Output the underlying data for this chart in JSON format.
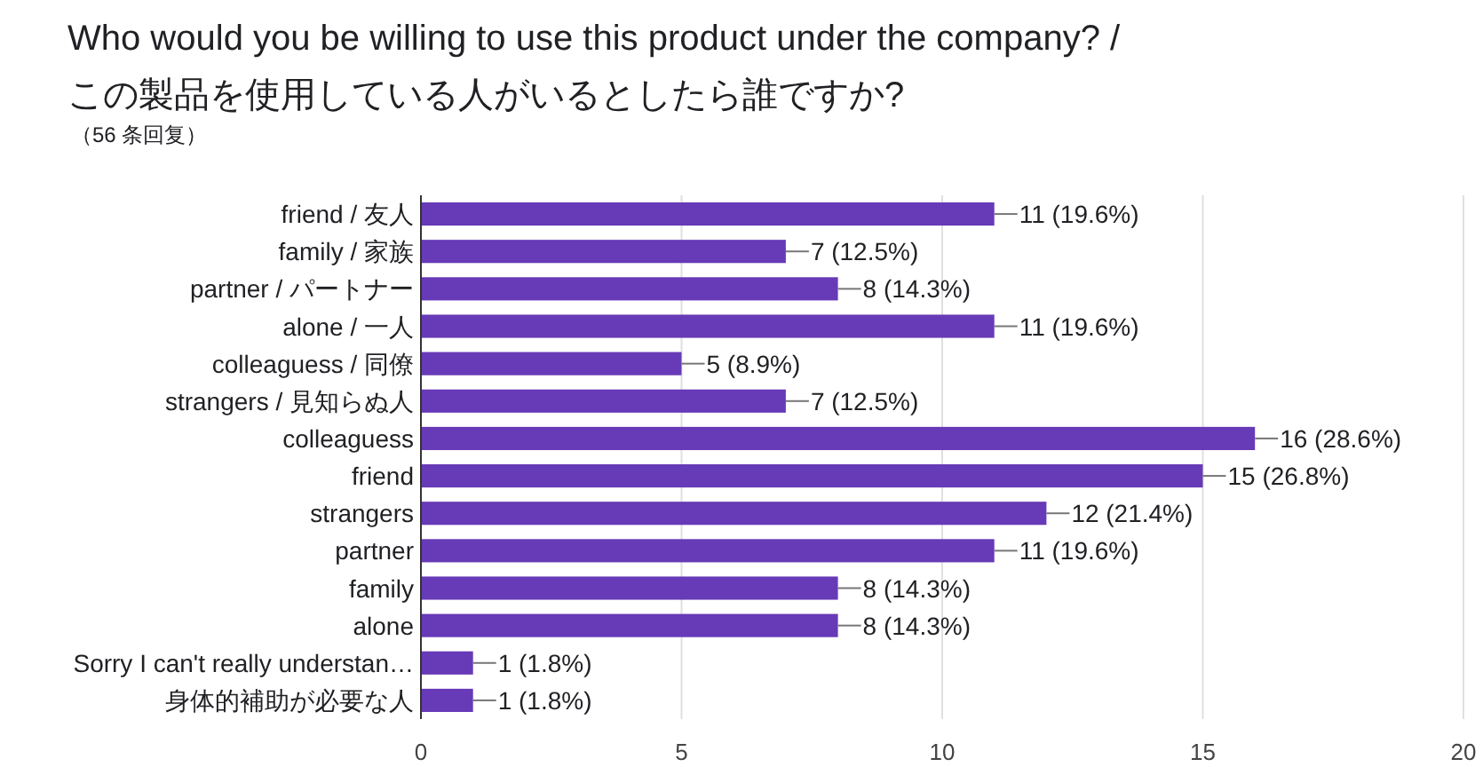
{
  "chart_data": {
    "type": "bar",
    "orientation": "horizontal",
    "title": "Who would you be willing to use this product under the company? / この製品を使用している人がいるとしたら誰ですか?",
    "subtitle": "（56 条回复）",
    "categories": [
      "friend / 友人",
      "family / 家族",
      "partner / パートナー",
      "alone / 一人",
      "colleaguess / 同僚",
      "strangers / 見知らぬ人",
      "colleaguess",
      "friend",
      "strangers",
      "partner",
      "family",
      "alone",
      "Sorry I can't really understan…",
      "身体的補助が必要な人"
    ],
    "values": [
      11,
      7,
      8,
      11,
      5,
      7,
      16,
      15,
      12,
      11,
      8,
      8,
      1,
      1
    ],
    "value_labels": [
      "11 (19.6%)",
      "7 (12.5%)",
      "8 (14.3%)",
      "11 (19.6%)",
      "5 (8.9%)",
      "7 (12.5%)",
      "16 (28.6%)",
      "15 (26.8%)",
      "12 (21.4%)",
      "11 (19.6%)",
      "8 (14.3%)",
      "8 (14.3%)",
      "1 (1.8%)",
      "1 (1.8%)"
    ],
    "color": "#673ab7",
    "xlim": [
      0,
      20
    ],
    "xticks": [
      0,
      5,
      10,
      15,
      20
    ],
    "grid": "x"
  }
}
